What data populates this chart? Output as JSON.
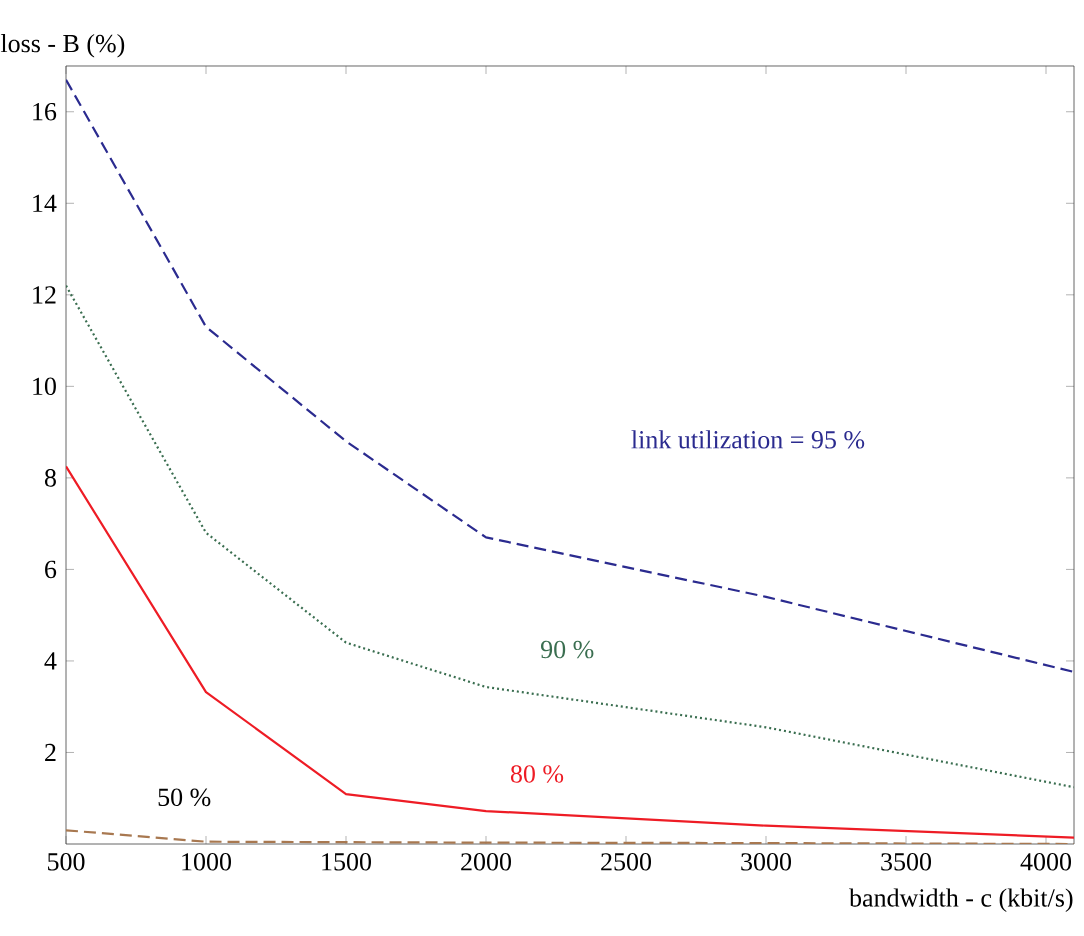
{
  "chart_data": {
    "type": "line",
    "xlabel": "bandwidth - c (kbit/s)",
    "ylabel": "loss - B (%)",
    "xlim": [
      500,
      4100
    ],
    "xticks": [
      500,
      1000,
      1500,
      2000,
      2500,
      3000,
      3500,
      4000
    ],
    "ylim": [
      0,
      17
    ],
    "yticks": [
      2,
      4,
      6,
      8,
      10,
      12,
      14,
      16
    ],
    "grid": false,
    "legend": false,
    "marker": "none",
    "series": [
      {
        "name": "link utilization = 95 %",
        "color": "#2b2b8f",
        "line_style": "dashed",
        "x": [
          500,
          1000,
          1500,
          2000,
          3000,
          4100
        ],
        "values": [
          16.7,
          11.3,
          8.8,
          6.7,
          5.4,
          3.76
        ]
      },
      {
        "name": "90 %",
        "color": "#3a6e50",
        "line_style": "dotted",
        "x": [
          500,
          1000,
          1500,
          2000,
          3000,
          4100
        ],
        "values": [
          12.2,
          6.8,
          4.4,
          3.43,
          2.55,
          1.24
        ]
      },
      {
        "name": "80 %",
        "color": "#ee1c25",
        "line_style": "solid",
        "x": [
          500,
          1000,
          1500,
          2000,
          3000,
          4100
        ],
        "values": [
          8.25,
          3.32,
          1.09,
          0.72,
          0.4,
          0.14
        ]
      },
      {
        "name": "50 %",
        "color": "#a87850",
        "line_style": "dashed",
        "x": [
          500,
          1000,
          2000,
          3000,
          4100
        ],
        "values": [
          0.3,
          0.05,
          0.03,
          0.02,
          0.0
        ]
      }
    ]
  }
}
